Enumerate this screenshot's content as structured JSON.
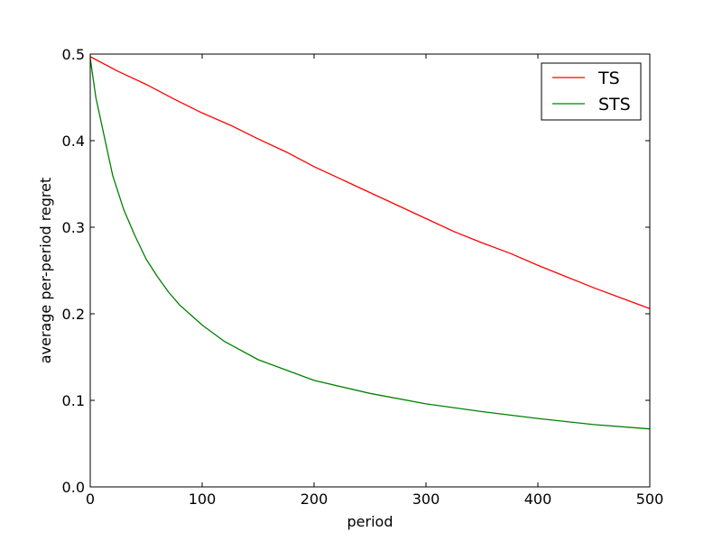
{
  "chart_data": {
    "type": "line",
    "title": "",
    "xlabel": "period",
    "ylabel": "average per-period regret",
    "xlim": [
      0,
      500
    ],
    "ylim": [
      0.0,
      0.5
    ],
    "x_ticks": [
      0,
      100,
      200,
      300,
      400,
      500
    ],
    "x_tick_labels": [
      "0",
      "100",
      "200",
      "300",
      "400",
      "500"
    ],
    "y_ticks": [
      0.0,
      0.1,
      0.2,
      0.3,
      0.4,
      0.5
    ],
    "y_tick_labels": [
      "0.0",
      "0.1",
      "0.2",
      "0.3",
      "0.4",
      "0.5"
    ],
    "grid": false,
    "legend_position": "top-right",
    "series": [
      {
        "name": "TS",
        "color": "#ff0000",
        "x": [
          0,
          25,
          50,
          75,
          100,
          125,
          150,
          175,
          200,
          225,
          250,
          275,
          300,
          325,
          350,
          375,
          400,
          425,
          450,
          475,
          500
        ],
        "y": [
          0.497,
          0.48,
          0.465,
          0.448,
          0.432,
          0.418,
          0.402,
          0.387,
          0.37,
          0.355,
          0.34,
          0.325,
          0.31,
          0.295,
          0.282,
          0.27,
          0.256,
          0.243,
          0.23,
          0.218,
          0.206
        ]
      },
      {
        "name": "STS",
        "color": "#008000",
        "x": [
          0,
          5,
          10,
          15,
          20,
          25,
          30,
          40,
          50,
          60,
          70,
          80,
          100,
          120,
          150,
          200,
          250,
          300,
          350,
          400,
          450,
          500
        ],
        "y": [
          0.495,
          0.45,
          0.42,
          0.39,
          0.36,
          0.34,
          0.32,
          0.29,
          0.263,
          0.243,
          0.225,
          0.21,
          0.187,
          0.168,
          0.147,
          0.123,
          0.108,
          0.096,
          0.087,
          0.079,
          0.072,
          0.067
        ]
      }
    ]
  }
}
